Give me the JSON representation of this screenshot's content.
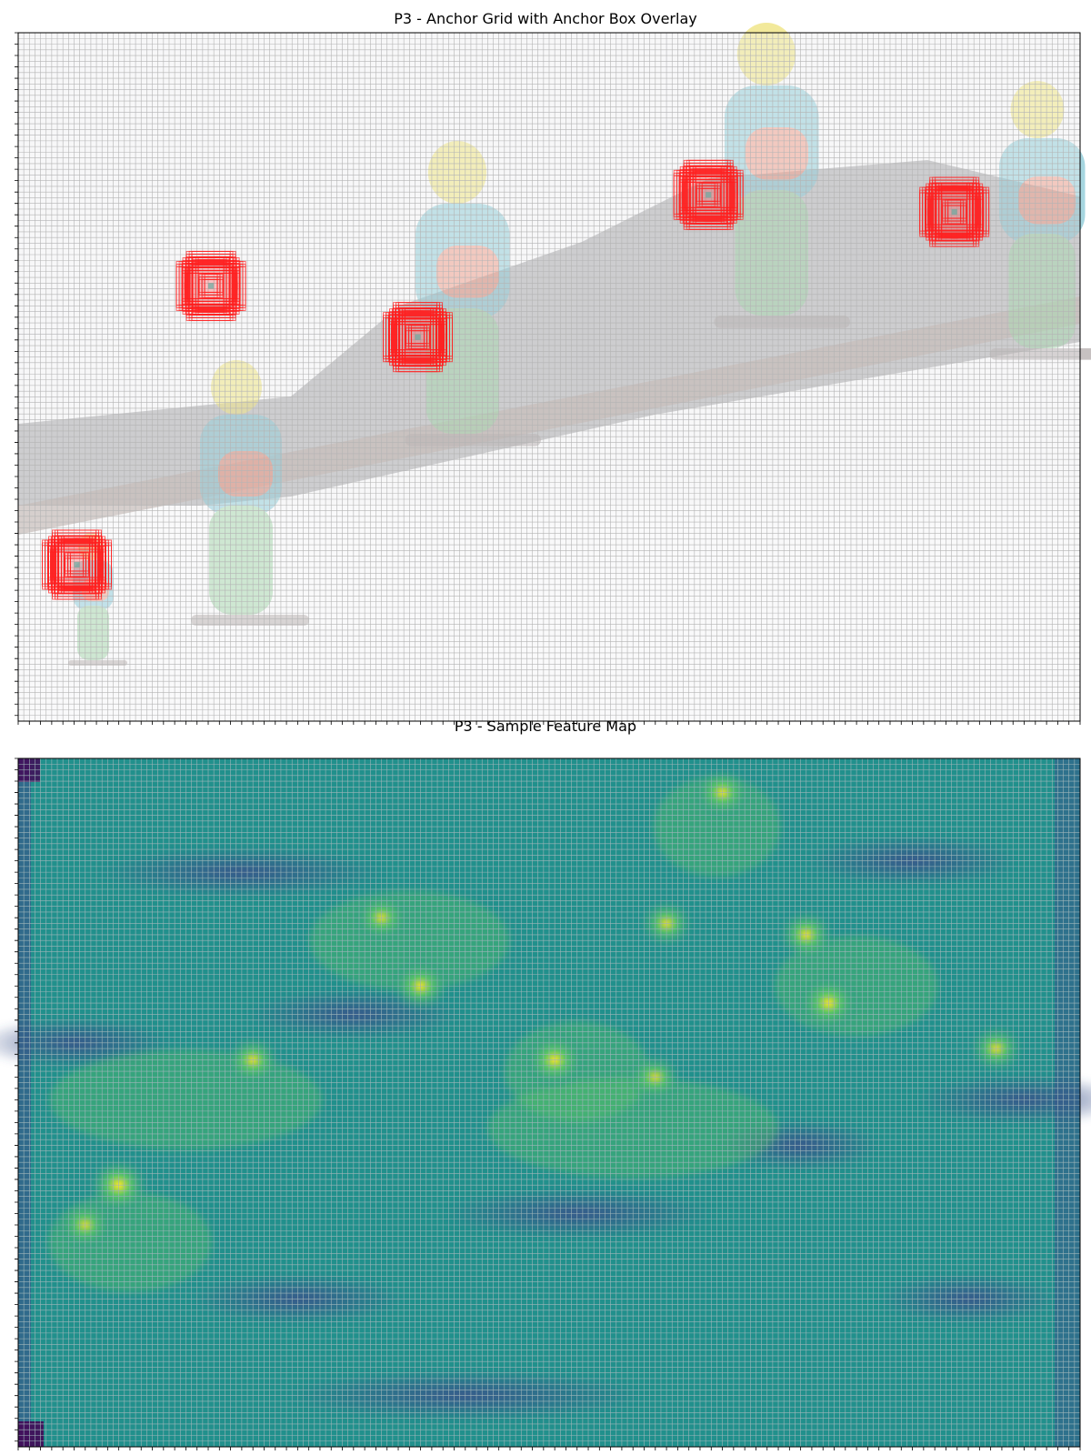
{
  "chart_data": [
    {
      "type": "heatmap",
      "title": "P3 - Anchor Grid with Anchor Box Overlay",
      "grid": true,
      "grid_color": "#b4b4b4",
      "xlabel": "",
      "ylabel": "",
      "background_image": "snowboarding-sequence-photo",
      "anchor_box_color": "#ff2020",
      "anchor_clusters": [
        {
          "col": 34,
          "row": 44
        },
        {
          "col": 71,
          "row": 53
        },
        {
          "col": 123,
          "row": 28
        },
        {
          "col": 167,
          "row": 31
        },
        {
          "col": 10,
          "row": 93
        }
      ]
    },
    {
      "type": "heatmap",
      "title": "P3 - Sample Feature Map",
      "grid": true,
      "colormap": "viridis",
      "colors": [
        "#440154",
        "#3b528b",
        "#21908c",
        "#5ec962",
        "#fde725"
      ],
      "xlabel": "",
      "ylabel": "",
      "hotspots": [
        {
          "col": 126,
          "row": 6,
          "level": 0.85
        },
        {
          "col": 65,
          "row": 28,
          "level": 0.8
        },
        {
          "col": 116,
          "row": 29,
          "level": 0.85
        },
        {
          "col": 141,
          "row": 31,
          "level": 0.9
        },
        {
          "col": 72,
          "row": 40,
          "level": 0.9
        },
        {
          "col": 145,
          "row": 43,
          "level": 0.95
        },
        {
          "col": 42,
          "row": 53,
          "level": 0.85
        },
        {
          "col": 96,
          "row": 53,
          "level": 0.95
        },
        {
          "col": 114,
          "row": 56,
          "level": 0.8
        },
        {
          "col": 175,
          "row": 51,
          "level": 0.85
        },
        {
          "col": 18,
          "row": 75,
          "level": 1.0
        },
        {
          "col": 12,
          "row": 82,
          "level": 0.8
        }
      ]
    }
  ]
}
